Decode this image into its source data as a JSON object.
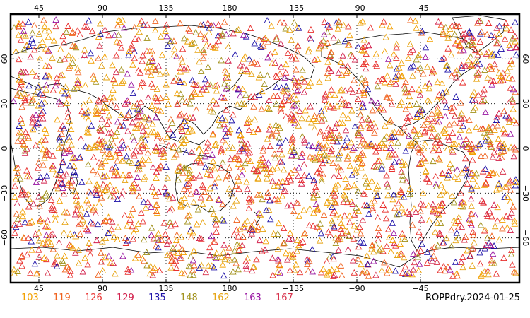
{
  "chart_data": {
    "type": "scatter",
    "projection": "equirectangular",
    "x_range": [
      25,
      385
    ],
    "y_range": [
      -90,
      90
    ],
    "top_ticks": [
      "45",
      "90",
      "135",
      "180",
      "−135",
      "−90",
      "−45"
    ],
    "bottom_ticks": [
      "45",
      "90",
      "135",
      "180",
      "−135",
      "−90",
      "−45"
    ],
    "left_ticks": [
      "60",
      "30",
      "0",
      "−30",
      "−60"
    ],
    "right_ticks": [
      "60",
      "30",
      "0",
      "−30",
      "−60"
    ],
    "grid": "dotted",
    "marker": "open-triangle",
    "legend": [
      {
        "label": "103",
        "color": "#f2a000"
      },
      {
        "label": "119",
        "color": "#f0621e"
      },
      {
        "label": "126",
        "color": "#e8302e"
      },
      {
        "label": "129",
        "color": "#d21e4a"
      },
      {
        "label": "135",
        "color": "#1c10a8"
      },
      {
        "label": "148",
        "color": "#a09019"
      },
      {
        "label": "162",
        "color": "#e6a414"
      },
      {
        "label": "163",
        "color": "#9612a0"
      },
      {
        "label": "167",
        "color": "#d8304a"
      }
    ],
    "footer_label": "ROPPdry.2024-01-25",
    "observation_count_estimate": 2600
  }
}
